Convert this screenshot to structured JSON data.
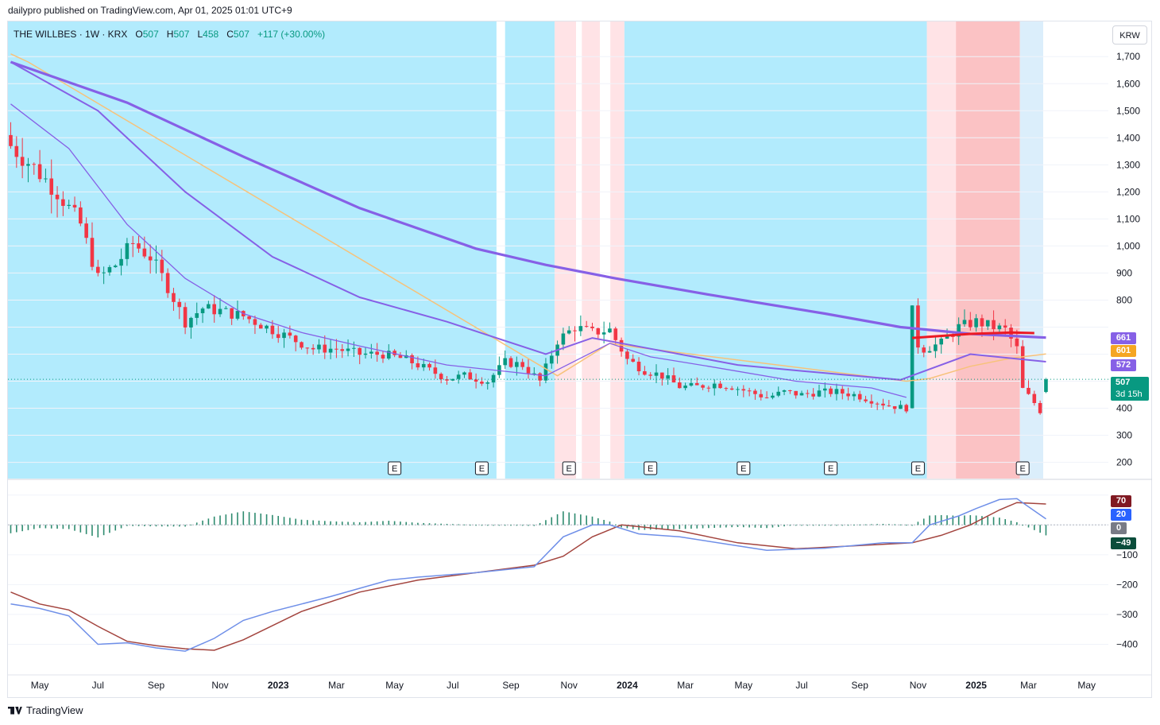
{
  "header": {
    "publish_line": "dailypro published on TradingView.com, Apr 01, 2025 01:01 UTC+9"
  },
  "legend": {
    "symbol": "THE WILLBES · 1W · KRX",
    "o_label": "O",
    "o_val": "507",
    "h_label": "H",
    "h_val": "507",
    "l_label": "L",
    "l_val": "458",
    "c_label": "C",
    "c_val": "507",
    "change": "+117 (+30.00%)"
  },
  "currency_button": "KRW",
  "colors": {
    "up": "#089981",
    "down": "#f23645",
    "bg_blue": "#b2ebfd",
    "bg_light_blue": "#dbeefb",
    "bg_pink": "#ffe3e6",
    "bg_red": "#fbc2c4",
    "ma_purple": "#8660e6",
    "ma_orange": "#f7c27a",
    "ma_red": "#ec1a23",
    "macd_line": "#6f8fe8",
    "signal_line": "#a3443e",
    "hist": "#2e8b6f"
  },
  "price_tags": {
    "ma200": "661",
    "orange": "601",
    "ma50": "572",
    "last": "507",
    "countdown": "3d 15h"
  },
  "macd_tags": {
    "signal": "70",
    "macd": "20",
    "zero": "0",
    "hist": "−49"
  },
  "footer": {
    "brand": "TradingView"
  },
  "chart_data": [
    {
      "type": "candlestick",
      "title": "THE WILLBES · 1W · KRX",
      "price_axis_ticks": [
        200,
        300,
        400,
        500,
        600,
        700,
        800,
        900,
        1000,
        1100,
        1200,
        1300,
        1400,
        1500,
        1600,
        1700
      ],
      "price_axis_labels": [
        "200",
        "300",
        "400",
        "",
        "",
        "",
        "800",
        "900",
        "1,000",
        "1,100",
        "1,200",
        "1,300",
        "1,400",
        "1,500",
        "1,600",
        "1,700"
      ],
      "ylim": [
        140,
        1830
      ],
      "time_axis_labels": [
        "May",
        "Jul",
        "Sep",
        "Nov",
        "2023",
        "Mar",
        "May",
        "Jul",
        "Sep",
        "Nov",
        "2024",
        "Mar",
        "May",
        "Jul",
        "Sep",
        "Nov",
        "2025",
        "Mar",
        "May"
      ],
      "earnings_markers": [
        "E",
        "E",
        "E",
        "E",
        "E",
        "E",
        "E",
        "E"
      ],
      "close_path": [
        [
          0,
          1370
        ],
        [
          4,
          1290
        ],
        [
          8,
          1200
        ],
        [
          12,
          1080
        ],
        [
          15,
          880
        ],
        [
          18,
          930
        ],
        [
          21,
          1010
        ],
        [
          24,
          960
        ],
        [
          27,
          850
        ],
        [
          30,
          720
        ],
        [
          33,
          770
        ],
        [
          36,
          760
        ],
        [
          40,
          740
        ],
        [
          44,
          700
        ],
        [
          48,
          660
        ],
        [
          52,
          620
        ],
        [
          56,
          620
        ],
        [
          60,
          600
        ],
        [
          64,
          600
        ],
        [
          68,
          580
        ],
        [
          72,
          540
        ],
        [
          75,
          510
        ],
        [
          78,
          520
        ],
        [
          82,
          500
        ],
        [
          85,
          570
        ],
        [
          88,
          560
        ],
        [
          91,
          500
        ],
        [
          94,
          650
        ],
        [
          97,
          700
        ],
        [
          100,
          680
        ],
        [
          103,
          690
        ],
        [
          106,
          580
        ],
        [
          109,
          540
        ],
        [
          112,
          520
        ],
        [
          115,
          480
        ],
        [
          118,
          480
        ],
        [
          121,
          490
        ],
        [
          124,
          480
        ],
        [
          127,
          460
        ],
        [
          130,
          440
        ],
        [
          133,
          460
        ],
        [
          136,
          450
        ],
        [
          139,
          460
        ],
        [
          142,
          460
        ],
        [
          145,
          450
        ],
        [
          148,
          430
        ],
        [
          151,
          410
        ],
        [
          154,
          400
        ],
        [
          155,
          650
        ],
        [
          157,
          620
        ],
        [
          160,
          640
        ],
        [
          163,
          700
        ],
        [
          166,
          720
        ],
        [
          169,
          700
        ],
        [
          171,
          690
        ],
        [
          173,
          620
        ],
        [
          174,
          470
        ],
        [
          176,
          420
        ],
        [
          177,
          390
        ],
        [
          178,
          507
        ]
      ],
      "ma_long_purple": [
        [
          0,
          1680
        ],
        [
          20,
          1530
        ],
        [
          40,
          1330
        ],
        [
          60,
          1140
        ],
        [
          80,
          990
        ],
        [
          92,
          930
        ],
        [
          104,
          880
        ],
        [
          120,
          820
        ],
        [
          140,
          750
        ],
        [
          153,
          700
        ],
        [
          165,
          675
        ],
        [
          178,
          661
        ]
      ],
      "ma_mid_purple": [
        [
          0,
          1680
        ],
        [
          15,
          1500
        ],
        [
          30,
          1200
        ],
        [
          45,
          960
        ],
        [
          60,
          810
        ],
        [
          75,
          720
        ],
        [
          92,
          600
        ],
        [
          100,
          660
        ],
        [
          110,
          620
        ],
        [
          125,
          560
        ],
        [
          140,
          530
        ],
        [
          153,
          505
        ],
        [
          165,
          600
        ],
        [
          178,
          572
        ]
      ],
      "ma_short_purple": [
        [
          0,
          1525
        ],
        [
          10,
          1360
        ],
        [
          20,
          1080
        ],
        [
          30,
          880
        ],
        [
          40,
          750
        ],
        [
          50,
          680
        ],
        [
          60,
          630
        ],
        [
          75,
          560
        ],
        [
          92,
          520
        ],
        [
          103,
          640
        ],
        [
          110,
          590
        ],
        [
          120,
          555
        ],
        [
          135,
          500
        ],
        [
          148,
          475
        ],
        [
          154,
          440
        ]
      ],
      "ma_orange": [
        [
          0,
          1710
        ],
        [
          3,
          1680
        ],
        [
          94,
          520
        ],
        [
          100,
          600
        ],
        [
          103,
          640
        ],
        [
          106,
          630
        ],
        [
          154,
          500
        ],
        [
          158,
          510
        ],
        [
          165,
          555
        ],
        [
          172,
          585
        ],
        [
          178,
          601
        ]
      ],
      "ma_red": [
        [
          155,
          660
        ],
        [
          165,
          675
        ],
        [
          172,
          680
        ],
        [
          176,
          678
        ]
      ]
    },
    {
      "type": "line",
      "title": "MACD",
      "axis_ticks": [
        -400,
        -300,
        -200,
        -100,
        0,
        100
      ],
      "axis_labels": [
        "−400",
        "−300",
        "−200",
        "−100",
        "0",
        ""
      ],
      "ylim": [
        -500,
        150
      ],
      "series": [
        {
          "name": "",
          "values": [
            [
              0,
              -265
            ],
            [
              5,
              -280
            ],
            [
              10,
              -305
            ],
            [
              15,
              -400
            ],
            [
              20,
              -395
            ],
            [
              25,
              -412
            ],
            [
              30,
              -423
            ],
            [
              35,
              -380
            ],
            [
              40,
              -320
            ],
            [
              45,
              -290
            ],
            [
              50,
              -265
            ],
            [
              55,
              -240
            ],
            [
              65,
              -185
            ],
            [
              70,
              -175
            ],
            [
              80,
              -160
            ],
            [
              85,
              -150
            ],
            [
              90,
              -140
            ],
            [
              95,
              -40
            ],
            [
              100,
              0
            ],
            [
              103,
              0
            ],
            [
              108,
              -30
            ],
            [
              115,
              -40
            ],
            [
              125,
              -70
            ],
            [
              130,
              -85
            ],
            [
              140,
              -78
            ],
            [
              150,
              -60
            ],
            [
              155,
              -60
            ],
            [
              158,
              0
            ],
            [
              163,
              30
            ],
            [
              166,
              55
            ],
            [
              170,
              85
            ],
            [
              173,
              88
            ],
            [
              178,
              20
            ]
          ]
        },
        {
          "name": "",
          "values": [
            [
              0,
              -225
            ],
            [
              5,
              -265
            ],
            [
              10,
              -285
            ],
            [
              15,
              -340
            ],
            [
              20,
              -390
            ],
            [
              25,
              -405
            ],
            [
              30,
              -415
            ],
            [
              35,
              -420
            ],
            [
              40,
              -385
            ],
            [
              50,
              -290
            ],
            [
              60,
              -225
            ],
            [
              70,
              -185
            ],
            [
              80,
              -160
            ],
            [
              90,
              -135
            ],
            [
              95,
              -105
            ],
            [
              100,
              -40
            ],
            [
              105,
              0
            ],
            [
              115,
              -20
            ],
            [
              125,
              -60
            ],
            [
              135,
              -80
            ],
            [
              145,
              -70
            ],
            [
              155,
              -60
            ],
            [
              160,
              -35
            ],
            [
              165,
              0
            ],
            [
              170,
              50
            ],
            [
              173,
              75
            ],
            [
              178,
              70
            ]
          ]
        }
      ]
    }
  ]
}
